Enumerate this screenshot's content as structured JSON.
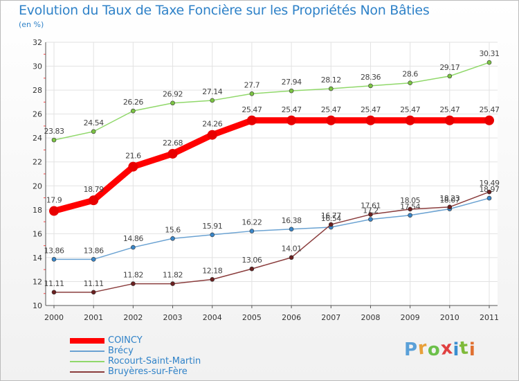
{
  "header": {
    "title": "Evolution du Taux de Taxe Foncière sur les Propriétés Non Bâties",
    "unit": "(en %)"
  },
  "logo": {
    "text": "Proxiti",
    "letters": [
      "P",
      "r",
      "o",
      "x",
      "i",
      "t",
      "i"
    ],
    "colors": [
      "#5aa0d8",
      "#e8a03a",
      "#6cc04a",
      "#e04040",
      "#3a8ed0",
      "#7fba3a",
      "#e07030"
    ]
  },
  "chart_data": {
    "type": "line",
    "title": "Evolution du Taux de Taxe Foncière sur les Propriétés Non Bâties",
    "ylabel": "(en %)",
    "xlabel": "",
    "x": [
      "2000",
      "2001",
      "2002",
      "2003",
      "2004",
      "2005",
      "2006",
      "2007",
      "2008",
      "2009",
      "2010",
      "2011"
    ],
    "ylim": [
      10,
      32
    ],
    "yticks": [
      "10",
      "12",
      "14",
      "16",
      "18",
      "20",
      "22",
      "24",
      "26",
      "28",
      "30",
      "32"
    ],
    "grid": true,
    "legend_position": "bottom-left",
    "series": [
      {
        "name": "Rocourt-Saint-Martin",
        "color": "#90d86a",
        "marker": "#7cc444",
        "emphasis": false,
        "values": [
          23.83,
          24.54,
          26.26,
          26.92,
          27.14,
          27.7,
          27.94,
          28.12,
          28.36,
          28.6,
          29.17,
          30.31
        ],
        "labels": [
          "23.83",
          "24.54",
          "26.26",
          "26.92",
          "27.14",
          "27.7",
          "27.94",
          "28.12",
          "28.36",
          "28.6",
          "29.17",
          "30.31"
        ]
      },
      {
        "name": "Brécy",
        "color": "#6aa2d2",
        "marker": "#3a86c8",
        "emphasis": false,
        "values": [
          13.86,
          13.86,
          14.86,
          15.6,
          15.91,
          16.22,
          16.38,
          16.54,
          17.2,
          17.54,
          18.07,
          18.97
        ],
        "labels": [
          "13.86",
          "13.86",
          "14.86",
          "15.6",
          "15.91",
          "16.22",
          "16.38",
          "16.54",
          "17.2",
          "17.54",
          "18.07",
          "18.97"
        ]
      },
      {
        "name": "Bruyères-sur-Fère",
        "color": "#8a3c3c",
        "marker": "#6a2020",
        "emphasis": false,
        "values": [
          11.11,
          11.11,
          11.82,
          11.82,
          12.18,
          13.06,
          14.01,
          16.77,
          17.61,
          18.05,
          18.23,
          19.49
        ],
        "labels": [
          "11.11",
          "11.11",
          "11.82",
          "11.82",
          "12.18",
          "13.06",
          "14.01",
          "16.77",
          "17.61",
          "18.05",
          "18.23",
          "19.49"
        ]
      },
      {
        "name": "COINCY",
        "color": "#ff0000",
        "marker": "#e80000",
        "emphasis": true,
        "values": [
          17.9,
          18.79,
          21.6,
          22.68,
          24.26,
          25.47,
          25.47,
          25.47,
          25.47,
          25.47,
          25.47,
          25.47
        ],
        "labels": [
          "17.9",
          "18.79",
          "21.6",
          "22.68",
          "24.26",
          "25.47",
          "25.47",
          "25.47",
          "25.47",
          "25.47",
          "25.47",
          "25.47"
        ]
      }
    ]
  },
  "legend": {
    "items": [
      {
        "label": "COINCY",
        "color": "#ff0000",
        "thickness": 8
      },
      {
        "label": "Brécy",
        "color": "#6aa2d2",
        "thickness": 2
      },
      {
        "label": "Rocourt-Saint-Martin",
        "color": "#90d86a",
        "thickness": 2
      },
      {
        "label": "Bruyères-sur-Fère",
        "color": "#8a3c3c",
        "thickness": 2
      }
    ]
  }
}
